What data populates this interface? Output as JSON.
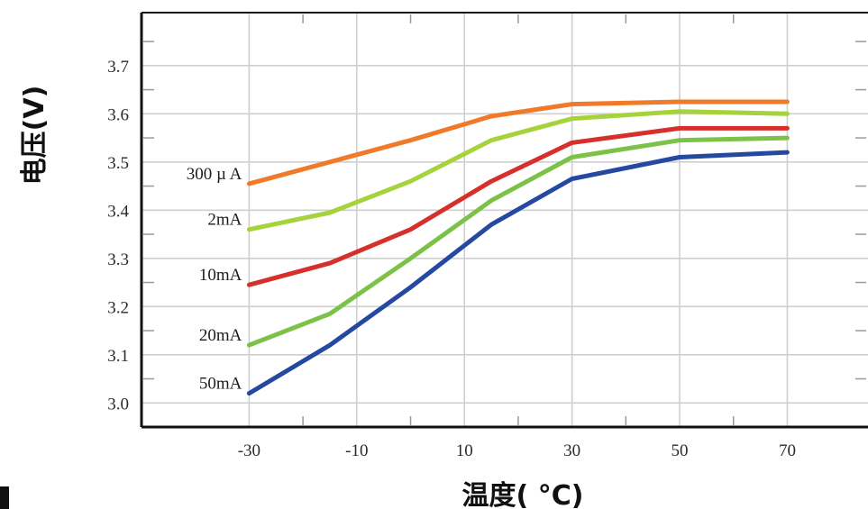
{
  "chart_data": {
    "type": "line",
    "title": "",
    "xlabel": "温度( °C)",
    "ylabel": "电压(V)",
    "x_ticks": [
      "-30",
      "-10",
      "10",
      "30",
      "50",
      "70"
    ],
    "y_ticks": [
      "3.0",
      "3.1",
      "3.2",
      "3.3",
      "3.4",
      "3.5",
      "3.6",
      "3.7"
    ],
    "xlim": [
      -50,
      85
    ],
    "ylim": [
      2.95,
      3.81
    ],
    "grid": true,
    "x": [
      -30,
      -15,
      0,
      15,
      30,
      50,
      70
    ],
    "series": [
      {
        "name": "300μA",
        "label": "300 µ A",
        "color": "#f07a2a",
        "values": [
          3.455,
          3.5,
          3.545,
          3.595,
          3.62,
          3.625,
          3.625
        ]
      },
      {
        "name": "2mA",
        "label": "2mA",
        "color": "#a6d33c",
        "values": [
          3.36,
          3.395,
          3.46,
          3.545,
          3.59,
          3.605,
          3.6
        ]
      },
      {
        "name": "10mA",
        "label": "10mA",
        "color": "#d6302c",
        "values": [
          3.245,
          3.29,
          3.36,
          3.46,
          3.54,
          3.57,
          3.57
        ]
      },
      {
        "name": "20mA",
        "label": "20mA",
        "color": "#7cc248",
        "values": [
          3.12,
          3.185,
          3.3,
          3.42,
          3.51,
          3.545,
          3.55
        ]
      },
      {
        "name": "50mA",
        "label": "50mA",
        "color": "#2548a0",
        "values": [
          3.02,
          3.12,
          3.24,
          3.37,
          3.465,
          3.51,
          3.52
        ]
      }
    ]
  }
}
